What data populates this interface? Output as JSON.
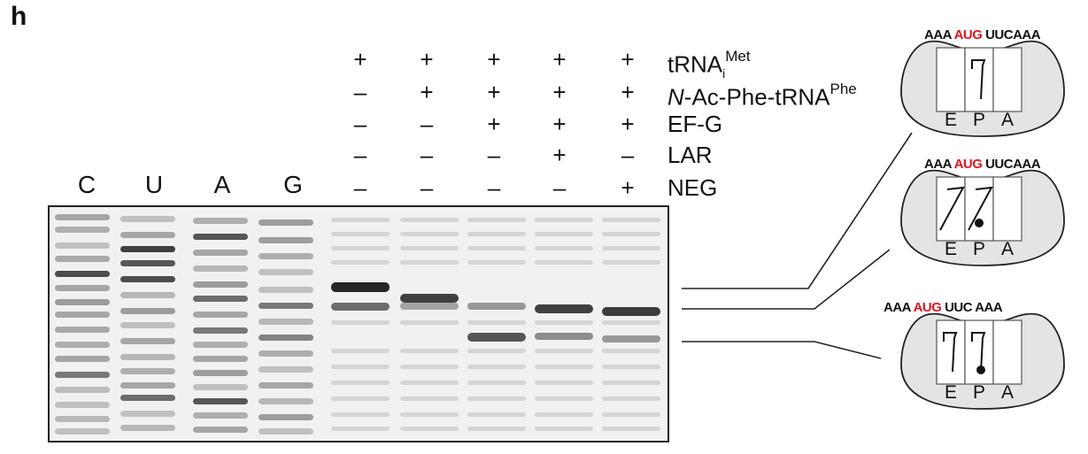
{
  "panel_letter": "h",
  "conditions": [
    {
      "label_main": "tRNA",
      "label_sub": "i",
      "label_sup": "Met",
      "italic_prefix": "",
      "signs": [
        "+",
        "+",
        "+",
        "+",
        "+"
      ]
    },
    {
      "label_main": "-Ac-Phe-tRNA",
      "label_sub": "",
      "label_sup": "Phe",
      "italic_prefix": "N",
      "signs": [
        "–",
        "+",
        "+",
        "+",
        "+"
      ]
    },
    {
      "label_main": "EF-G",
      "label_sub": "",
      "label_sup": "",
      "italic_prefix": "",
      "signs": [
        "–",
        "–",
        "+",
        "+",
        "+"
      ]
    },
    {
      "label_main": "LAR",
      "label_sub": "",
      "label_sup": "",
      "italic_prefix": "",
      "signs": [
        "–",
        "–",
        "–",
        "+",
        "–"
      ]
    },
    {
      "label_main": "NEG",
      "label_sub": "",
      "label_sup": "",
      "italic_prefix": "",
      "signs": [
        "–",
        "–",
        "–",
        "–",
        "+"
      ]
    }
  ],
  "sequencing_lanes": [
    "C",
    "U",
    "A",
    "G"
  ],
  "ribosomes": [
    {
      "mrna": [
        "AAA",
        "AUG",
        "UUC",
        "AAA"
      ],
      "start_codon_index": 1,
      "sites": [
        "E",
        "P",
        "A"
      ]
    },
    {
      "mrna": [
        "AAA",
        "AUG",
        "UUC",
        "AAA"
      ],
      "start_codon_index": 1,
      "sites": [
        "E",
        "P",
        "A"
      ]
    },
    {
      "mrna": [
        "AAA",
        "AUG",
        "UUC",
        "AAA"
      ],
      "start_codon_index": 1,
      "sites": [
        "E",
        "P",
        "A"
      ]
    }
  ],
  "colors": {
    "start_codon": "#e8141b",
    "ribosome_fill": "#e4e4e4",
    "gel_background": "#f1f1f1"
  }
}
